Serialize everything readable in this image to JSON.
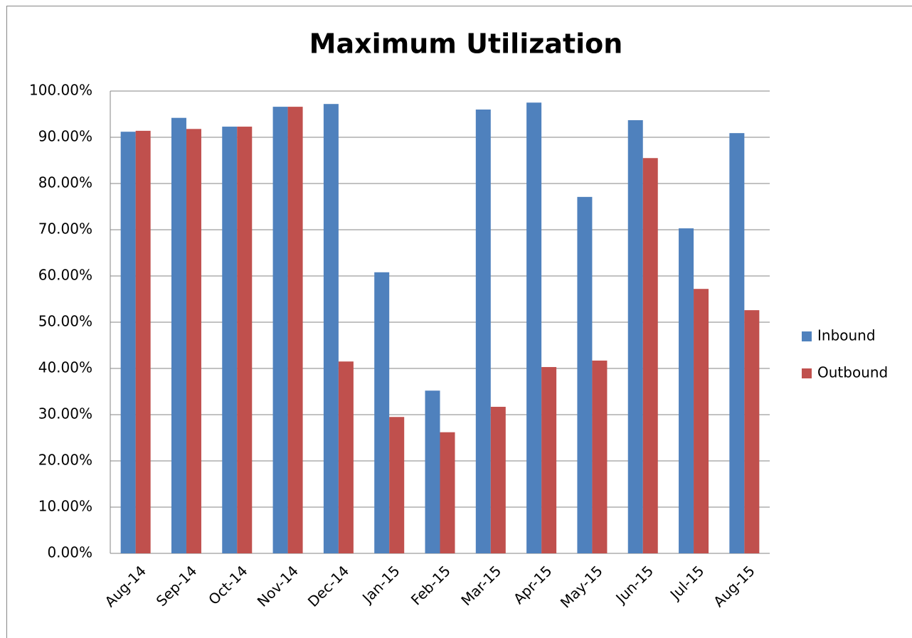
{
  "chart_data": {
    "type": "bar",
    "title": "Maximum Utilization",
    "categories": [
      "Aug-14",
      "Sep-14",
      "Oct-14",
      "Nov-14",
      "Dec-14",
      "Jan-15",
      "Feb-15",
      "Mar-15",
      "Apr-15",
      "May-15",
      "Jun-15",
      "Jul-15",
      "Aug-15"
    ],
    "series": [
      {
        "name": "Inbound",
        "color": "#4f81bd",
        "values": [
          91.2,
          94.2,
          92.3,
          96.6,
          97.2,
          60.8,
          35.2,
          96.0,
          97.5,
          77.1,
          93.7,
          70.3,
          90.9
        ]
      },
      {
        "name": "Outbound",
        "color": "#c0504d",
        "values": [
          91.4,
          91.8,
          92.3,
          96.6,
          41.5,
          29.5,
          26.2,
          31.7,
          40.3,
          41.7,
          85.5,
          57.2,
          52.6
        ]
      }
    ],
    "ylim": [
      0,
      100
    ],
    "yticks": [
      {
        "value": 0,
        "label": "0.00%"
      },
      {
        "value": 10,
        "label": "10.00%"
      },
      {
        "value": 20,
        "label": "20.00%"
      },
      {
        "value": 30,
        "label": "30.00%"
      },
      {
        "value": 40,
        "label": "40.00%"
      },
      {
        "value": 50,
        "label": "50.00%"
      },
      {
        "value": 60,
        "label": "60.00%"
      },
      {
        "value": 70,
        "label": "70.00%"
      },
      {
        "value": 80,
        "label": "80.00%"
      },
      {
        "value": 90,
        "label": "90.00%"
      },
      {
        "value": 100,
        "label": "100.00%"
      }
    ],
    "grid": true,
    "legend": "right"
  }
}
